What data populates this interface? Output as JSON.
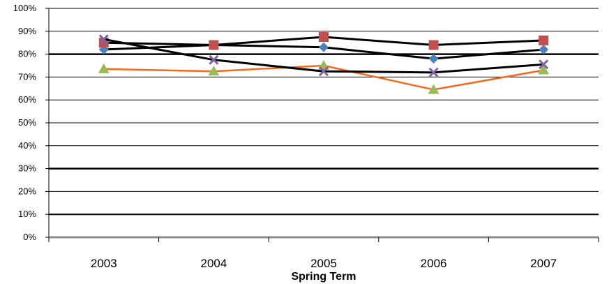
{
  "chart_data": {
    "type": "line",
    "title": "",
    "xlabel": "Spring Term",
    "ylabel": "",
    "categories": [
      "2003",
      "2004",
      "2005",
      "2006",
      "2007"
    ],
    "ylim": [
      0,
      100
    ],
    "yticks": [
      "0%",
      "10%",
      "20%",
      "30%",
      "40%",
      "50%",
      "60%",
      "70%",
      "80%",
      "90%",
      "100%"
    ],
    "grid": true,
    "legend": "none",
    "series": [
      {
        "values": [
          82,
          84,
          83,
          78,
          82
        ],
        "line_color": "#000000",
        "marker": "diamond",
        "marker_color": "#4F81BD"
      },
      {
        "values": [
          85,
          84,
          87.5,
          84,
          86
        ],
        "line_color": "#000000",
        "marker": "square",
        "marker_color": "#C0504D"
      },
      {
        "values": [
          73.5,
          72.5,
          75,
          64.5,
          73
        ],
        "line_color": "#F26B1D",
        "marker": "triangle",
        "marker_color": "#9BBB59"
      },
      {
        "values": [
          86.5,
          77.5,
          72.5,
          72,
          75.5
        ],
        "line_color": "#000000",
        "marker": "x",
        "marker_color": "#8064A2"
      }
    ]
  }
}
